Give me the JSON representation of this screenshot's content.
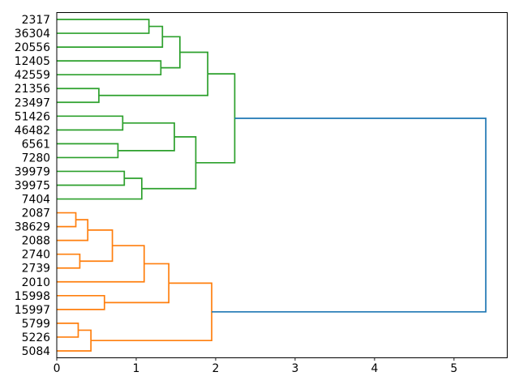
{
  "chart_data": {
    "type": "dendrogram",
    "title": "",
    "xlabel": "",
    "ylabel": "",
    "orientation": "labels-left-root-right",
    "grid": false,
    "legend": null,
    "xlim": [
      0,
      5.67
    ],
    "x_ticks": [
      0,
      1,
      2,
      3,
      4,
      5
    ],
    "x_tick_labels": [
      "0",
      "1",
      "2",
      "3",
      "4",
      "5"
    ],
    "leaf_order": [
      "2317",
      "36304",
      "20556",
      "12405",
      "42559",
      "21356",
      "23497",
      "51426",
      "46482",
      "6561",
      "7280",
      "39979",
      "39975",
      "7404",
      "2087",
      "38629",
      "2088",
      "2740",
      "2739",
      "2010",
      "15998",
      "15997",
      "5799",
      "5226",
      "5084"
    ],
    "colors": {
      "blue": "#1f77b4",
      "green": "#2ca02c",
      "orange": "#ff7f0e",
      "axis": "#000000",
      "background": "#ffffff"
    },
    "root_distance": 5.4,
    "tree": {
      "d": 5.4,
      "c": "blue",
      "ch": [
        {
          "d": 2.24,
          "c": "green",
          "ch": [
            {
              "d": 1.9,
              "ch": [
                {
                  "d": 1.55,
                  "ch": [
                    {
                      "d": 1.33,
                      "ch": [
                        {
                          "d": 1.16,
                          "ch": [
                            {
                              "leaf": "2317"
                            },
                            {
                              "leaf": "36304"
                            }
                          ]
                        },
                        {
                          "leaf": "20556"
                        }
                      ]
                    },
                    {
                      "d": 1.31,
                      "ch": [
                        {
                          "leaf": "12405"
                        },
                        {
                          "leaf": "42559"
                        }
                      ]
                    }
                  ]
                },
                {
                  "d": 0.53,
                  "ch": [
                    {
                      "leaf": "21356"
                    },
                    {
                      "leaf": "23497"
                    }
                  ]
                }
              ]
            },
            {
              "d": 1.75,
              "ch": [
                {
                  "d": 1.48,
                  "ch": [
                    {
                      "d": 0.83,
                      "ch": [
                        {
                          "leaf": "51426"
                        },
                        {
                          "leaf": "46482"
                        }
                      ]
                    },
                    {
                      "d": 0.77,
                      "ch": [
                        {
                          "leaf": "6561"
                        },
                        {
                          "leaf": "7280"
                        }
                      ]
                    }
                  ]
                },
                {
                  "d": 1.07,
                  "ch": [
                    {
                      "d": 0.85,
                      "ch": [
                        {
                          "leaf": "39979"
                        },
                        {
                          "leaf": "39975"
                        }
                      ]
                    },
                    {
                      "leaf": "7404"
                    }
                  ]
                }
              ]
            }
          ]
        },
        {
          "d": 1.95,
          "c": "orange",
          "ch": [
            {
              "d": 1.41,
              "ch": [
                {
                  "d": 1.1,
                  "ch": [
                    {
                      "d": 0.7,
                      "ch": [
                        {
                          "d": 0.39,
                          "ch": [
                            {
                              "d": 0.24,
                              "ch": [
                                {
                                  "leaf": "2087"
                                },
                                {
                                  "leaf": "38629"
                                }
                              ]
                            },
                            {
                              "leaf": "2088"
                            }
                          ]
                        },
                        {
                          "d": 0.29,
                          "ch": [
                            {
                              "leaf": "2740"
                            },
                            {
                              "leaf": "2739"
                            }
                          ]
                        }
                      ]
                    },
                    {
                      "leaf": "2010"
                    }
                  ]
                },
                {
                  "d": 0.6,
                  "ch": [
                    {
                      "leaf": "15998"
                    },
                    {
                      "leaf": "15997"
                    }
                  ]
                }
              ]
            },
            {
              "d": 0.43,
              "ch": [
                {
                  "d": 0.27,
                  "ch": [
                    {
                      "leaf": "5799"
                    },
                    {
                      "leaf": "5226"
                    }
                  ]
                },
                {
                  "leaf": "5084"
                }
              ]
            }
          ]
        }
      ]
    }
  }
}
